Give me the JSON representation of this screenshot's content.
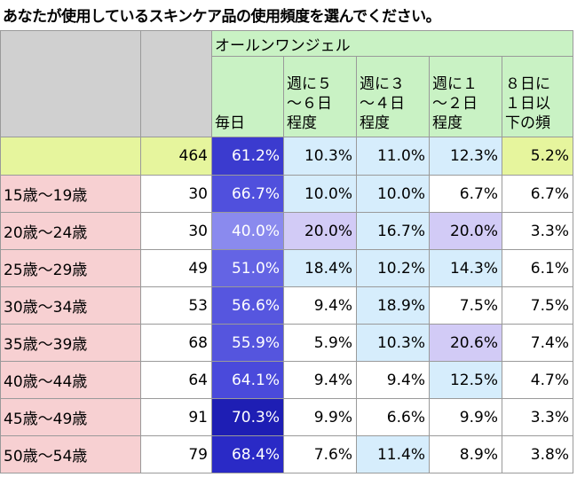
{
  "title": "あなたが使用しているスキンケア品の使用頻度を選んでください。",
  "group_label": "オールンワンジェル",
  "columns": [
    "毎日",
    "週に５ ～６日 程度",
    "週に３ ～４日 程度",
    "週に１ ～２日 程度",
    "８日に １日以 下の頻"
  ],
  "column_lines": [
    [
      "毎日"
    ],
    [
      "週に５",
      "～６日",
      "程度"
    ],
    [
      "週に３",
      "～４日",
      "程度"
    ],
    [
      "週に１",
      "～２日",
      "程度"
    ],
    [
      "８日に",
      "１日以",
      "下の頻"
    ]
  ],
  "total": {
    "label": "",
    "n": "464",
    "values": [
      "61.2%",
      "10.3%",
      "11.0%",
      "12.3%",
      "5.2%"
    ]
  },
  "rows": [
    {
      "label": "15歳～19歳",
      "n": "30",
      "values": [
        "66.7%",
        "10.0%",
        "10.0%",
        "6.7%",
        "6.7%"
      ]
    },
    {
      "label": "20歳～24歳",
      "n": "30",
      "values": [
        "40.0%",
        "20.0%",
        "16.7%",
        "20.0%",
        "3.3%"
      ]
    },
    {
      "label": "25歳～29歳",
      "n": "49",
      "values": [
        "51.0%",
        "18.4%",
        "10.2%",
        "14.3%",
        "6.1%"
      ]
    },
    {
      "label": "30歳～34歳",
      "n": "53",
      "values": [
        "56.6%",
        "9.4%",
        "18.9%",
        "7.5%",
        "7.5%"
      ]
    },
    {
      "label": "35歳～39歳",
      "n": "68",
      "values": [
        "55.9%",
        "5.9%",
        "10.3%",
        "20.6%",
        "7.4%"
      ]
    },
    {
      "label": "40歳～44歳",
      "n": "64",
      "values": [
        "64.1%",
        "9.4%",
        "9.4%",
        "12.5%",
        "4.7%"
      ]
    },
    {
      "label": "45歳～49歳",
      "n": "91",
      "values": [
        "70.3%",
        "9.9%",
        "6.6%",
        "9.9%",
        "3.3%"
      ]
    },
    {
      "label": "50歳～54歳",
      "n": "79",
      "values": [
        "68.4%",
        "7.6%",
        "11.4%",
        "8.9%",
        "3.8%"
      ]
    }
  ],
  "heat_colors": {
    "daily": [
      "#3b3bcf",
      "#5050dd",
      "#8a8aee",
      "#6464e4",
      "#5656df",
      "#5555de",
      "#4a4adb",
      "#1e1eb4",
      "#2a2ac6"
    ],
    "pale": "#d6edfc",
    "lavender": "#d2cbf6",
    "white": "#ffffff",
    "label_pink": "#f7d0d2",
    "total_yellow": "#e6f59d",
    "header_green": "#c9f2c4",
    "header_grey": "#d0d0d0"
  }
}
